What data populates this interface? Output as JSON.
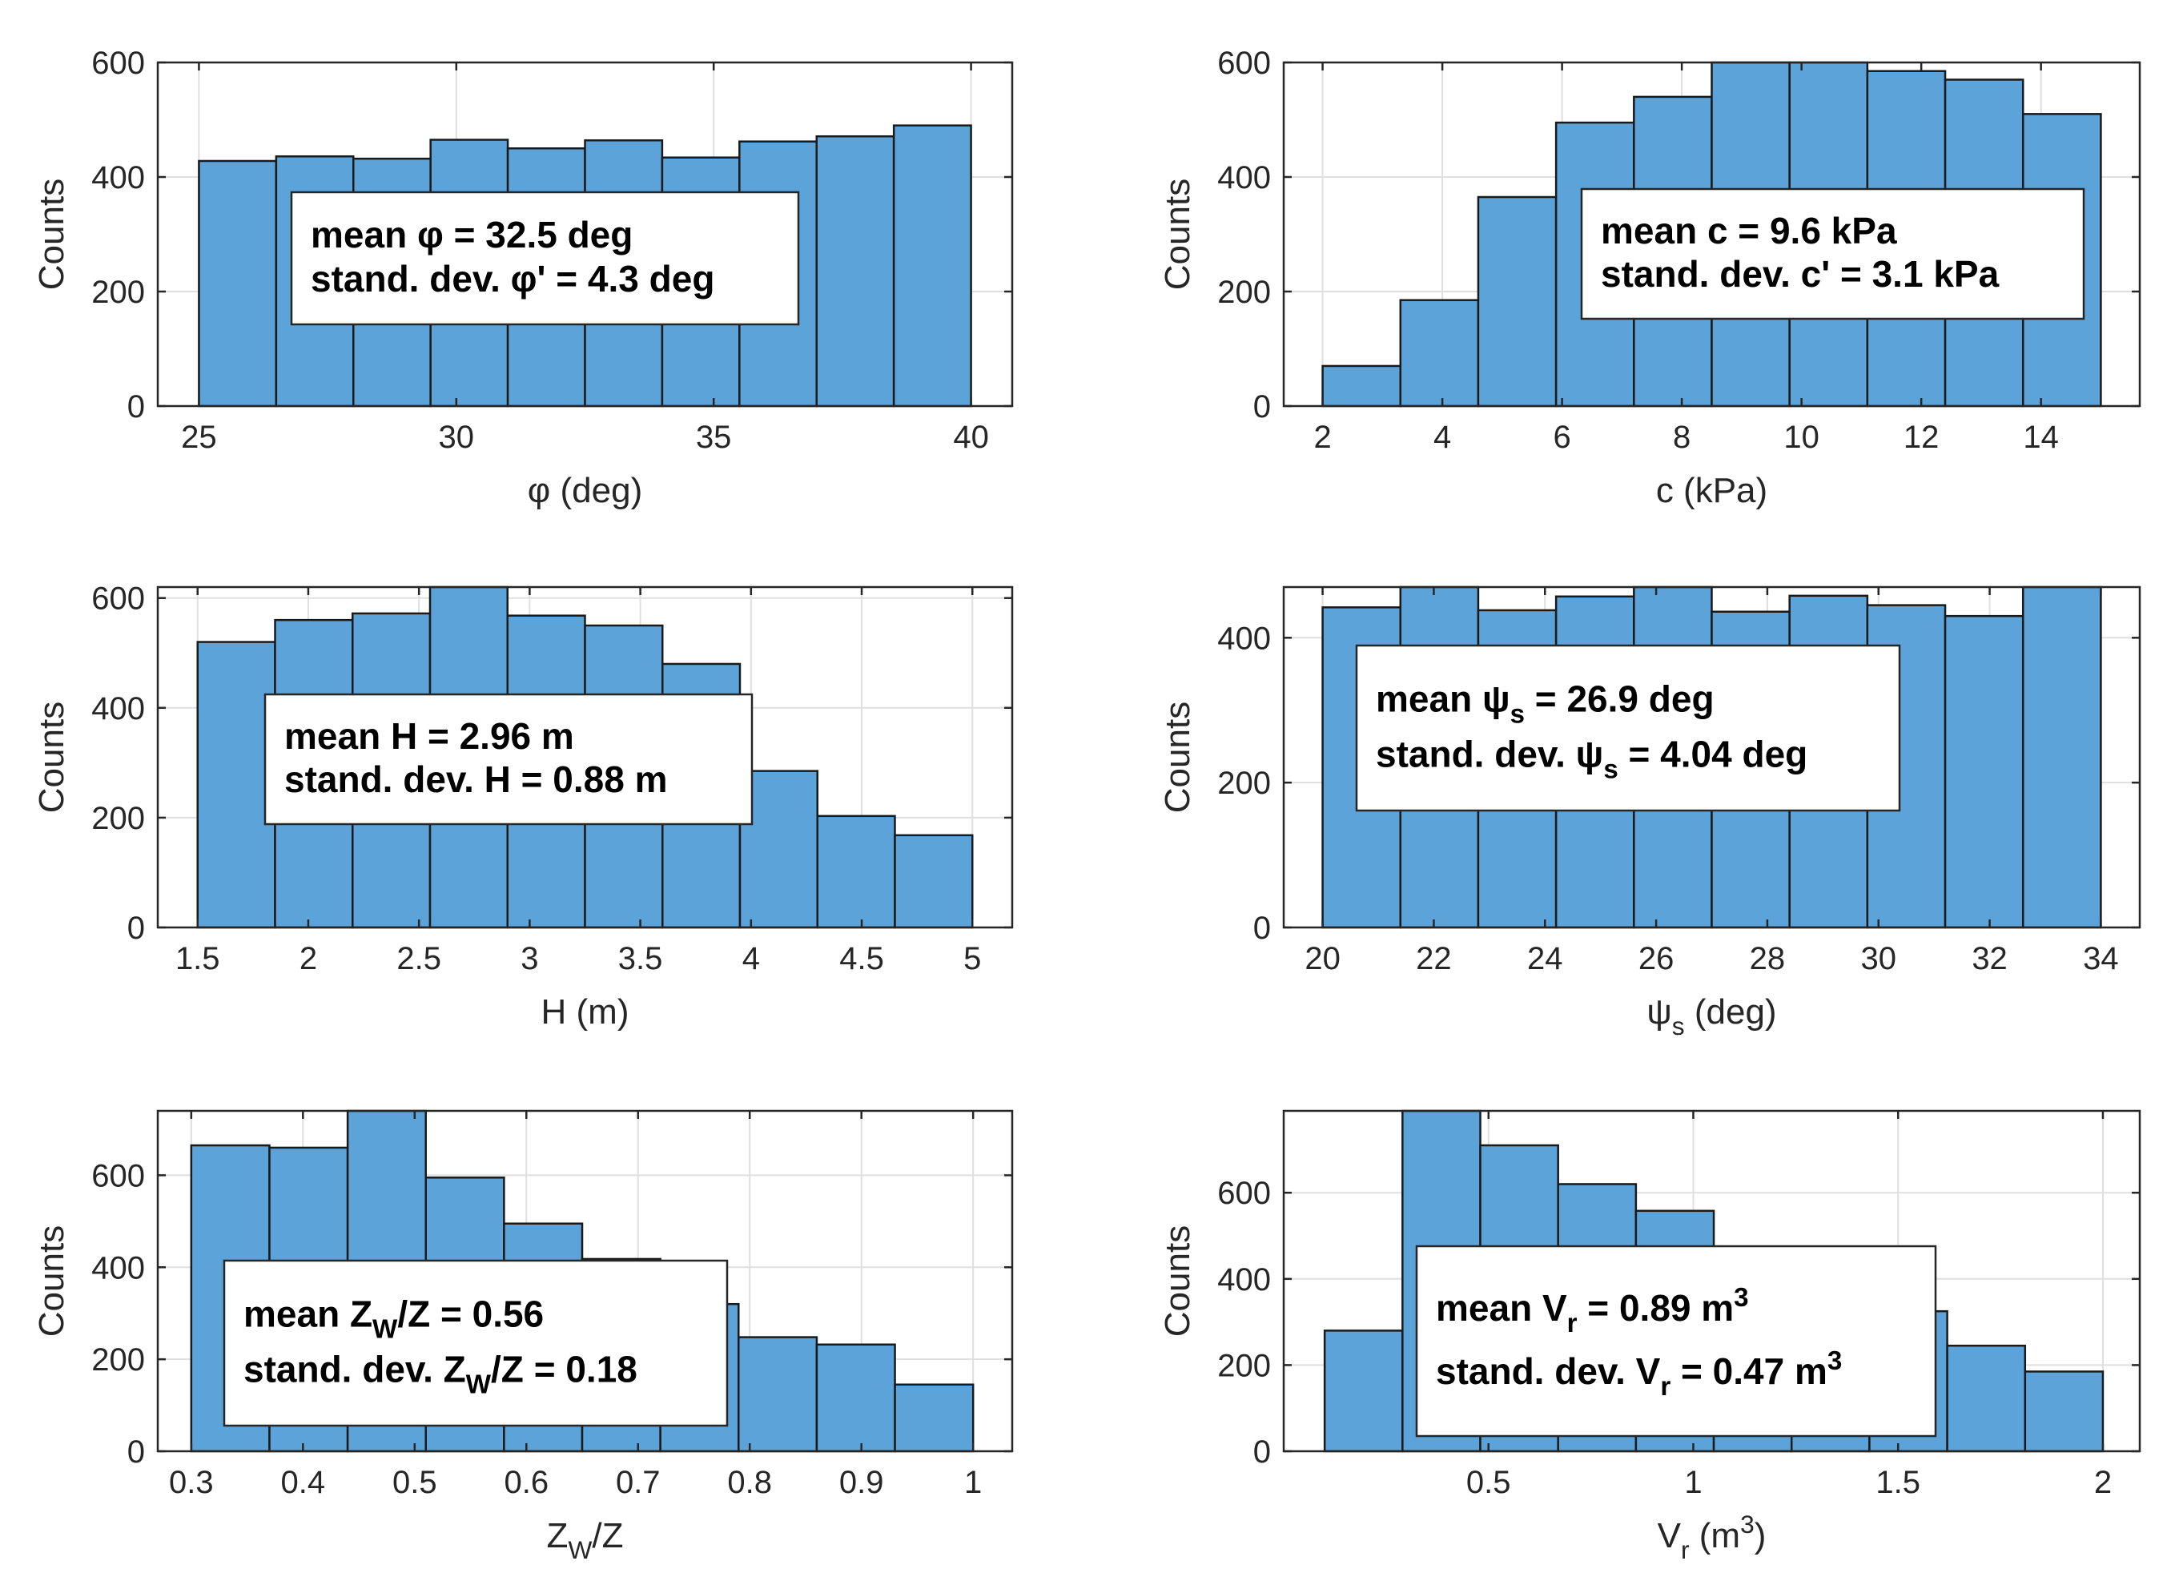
{
  "chart_data": [
    {
      "type": "bar",
      "ylabel": "Counts",
      "xlabel": "φ (deg)",
      "xlim": [
        24.2,
        40.8
      ],
      "ylim": [
        0,
        600
      ],
      "bin_edges": [
        25,
        26.5,
        28,
        29.5,
        31,
        32.5,
        34,
        35.5,
        37,
        38.5,
        40
      ],
      "values": [
        428,
        436,
        432,
        465,
        450,
        464,
        434,
        462,
        471,
        490
      ],
      "xticks": [
        25,
        30,
        35,
        40
      ],
      "xtick_labels": [
        "25",
        "30",
        "35",
        "40"
      ],
      "yticks": [
        0,
        200,
        400,
        600
      ],
      "ytick_labels": [
        "0",
        "200",
        "400",
        "600"
      ],
      "grid": true,
      "bar_color": "#5ba3d9",
      "annotation": {
        "line1": "mean φ = 32.5 deg",
        "line2": "stand. dev. φ' = 4.3 deg"
      }
    },
    {
      "type": "bar",
      "ylabel": "Counts",
      "xlabel": "c (kPa)",
      "xlim": [
        1.35,
        15.65
      ],
      "ylim": [
        0,
        600
      ],
      "bin_edges": [
        2,
        3.3,
        4.6,
        5.9,
        7.2,
        8.5,
        9.8,
        11.1,
        12.4,
        13.7,
        15
      ],
      "values": [
        70,
        185,
        365,
        495,
        540,
        600,
        600,
        585,
        570,
        510
      ],
      "xticks": [
        2,
        4,
        6,
        8,
        10,
        12,
        14
      ],
      "xtick_labels": [
        "2",
        "4",
        "6",
        "8",
        "10",
        "12",
        "14"
      ],
      "yticks": [
        0,
        200,
        400,
        600
      ],
      "ytick_labels": [
        "0",
        "200",
        "400",
        "600"
      ],
      "grid": true,
      "bar_color": "#5ba3d9",
      "annotation": {
        "line1": "mean c = 9.6 kPa",
        "line2": "stand. dev. c' = 3.1 kPa"
      }
    },
    {
      "type": "bar",
      "ylabel": "Counts",
      "xlabel": "H (m)",
      "xlim": [
        1.32,
        5.18
      ],
      "ylim": [
        0,
        620
      ],
      "bin_edges": [
        1.5,
        1.85,
        2.2,
        2.55,
        2.9,
        3.25,
        3.6,
        3.95,
        4.3,
        4.65,
        5
      ],
      "values": [
        520,
        560,
        572,
        620,
        568,
        550,
        480,
        285,
        203,
        168
      ],
      "xticks": [
        1.5,
        2,
        2.5,
        3,
        3.5,
        4,
        4.5,
        5
      ],
      "xtick_labels": [
        "1.5",
        "2",
        "2.5",
        "3",
        "3.5",
        "4",
        "4.5",
        "5"
      ],
      "yticks": [
        0,
        200,
        400,
        600
      ],
      "ytick_labels": [
        "0",
        "200",
        "400",
        "600"
      ],
      "grid": true,
      "bar_color": "#5ba3d9",
      "annotation": {
        "line1": "mean H = 2.96 m",
        "line2": "stand. dev. H = 0.88 m"
      }
    },
    {
      "type": "bar",
      "ylabel": "Counts",
      "xlabel_main": "ψ",
      "xlabel_sub": "s",
      "xlabel_rest": " (deg)",
      "xlim": [
        19.3,
        34.7
      ],
      "ylim": [
        0,
        470
      ],
      "bin_edges": [
        20,
        21.4,
        22.8,
        24.2,
        25.6,
        27,
        28.4,
        29.8,
        31.2,
        32.6,
        34
      ],
      "values": [
        442,
        470,
        438,
        457,
        470,
        436,
        458,
        445,
        430,
        470
      ],
      "xticks": [
        20,
        22,
        24,
        26,
        28,
        30,
        32,
        34
      ],
      "xtick_labels": [
        "20",
        "22",
        "24",
        "26",
        "28",
        "30",
        "32",
        "34"
      ],
      "yticks": [
        0,
        200,
        400
      ],
      "ytick_labels": [
        "0",
        "200",
        "400"
      ],
      "grid": true,
      "bar_color": "#5ba3d9",
      "annotation": {
        "line1_pre": "mean ψ",
        "line1_sub": "s",
        "line1_post": " = 26.9 deg",
        "line2_pre": "stand. dev. ψ",
        "line2_sub": "s",
        "line2_post": " = 4.04 deg"
      }
    },
    {
      "type": "bar",
      "ylabel": "Counts",
      "xlabel_main": "Z",
      "xlabel_sub": "W",
      "xlabel_rest": "/Z",
      "xlim": [
        0.27,
        1.035
      ],
      "ylim": [
        0,
        740
      ],
      "bin_edges": [
        0.3,
        0.37,
        0.44,
        0.51,
        0.58,
        0.65,
        0.72,
        0.79,
        0.86,
        0.93,
        1.0
      ],
      "values": [
        665,
        660,
        740,
        595,
        495,
        418,
        320,
        248,
        232,
        145
      ],
      "xticks": [
        0.3,
        0.4,
        0.5,
        0.6,
        0.7,
        0.8,
        0.9,
        1
      ],
      "xtick_labels": [
        "0.3",
        "0.4",
        "0.5",
        "0.6",
        "0.7",
        "0.8",
        "0.9",
        "1"
      ],
      "yticks": [
        0,
        200,
        400,
        600
      ],
      "ytick_labels": [
        "0",
        "200",
        "400",
        "600"
      ],
      "grid": true,
      "bar_color": "#5ba3d9",
      "annotation": {
        "line1_pre": "mean Z",
        "line1_sub": "W",
        "line1_post": "/Z = 0.56",
        "line2_pre": "stand. dev. Z",
        "line2_sub": "W",
        "line2_post": "/Z = 0.18"
      }
    },
    {
      "type": "bar",
      "ylabel": "Counts",
      "xlabel_main": "V",
      "xlabel_sub": "r",
      "xlabel_rest": " (m",
      "xlabel_sup": "3",
      "xlabel_end": ")",
      "xlim": [
        0,
        2.09
      ],
      "ylim": [
        0,
        790
      ],
      "bin_edges": [
        0.1,
        0.29,
        0.48,
        0.67,
        0.86,
        1.05,
        1.24,
        1.43,
        1.62,
        1.81,
        2.0
      ],
      "values": [
        280,
        790,
        710,
        620,
        558,
        395,
        355,
        325,
        245,
        185
      ],
      "xticks": [
        0.5,
        1,
        1.5,
        2
      ],
      "xtick_labels": [
        "0.5",
        "1",
        "1.5",
        "2"
      ],
      "yticks": [
        0,
        200,
        400,
        600
      ],
      "ytick_labels": [
        "0",
        "200",
        "400",
        "600"
      ],
      "grid": true,
      "bar_color": "#5ba3d9",
      "annotation": {
        "line1_pre": "mean V",
        "line1_sub": "r",
        "line1_post": " = 0.89 m",
        "line1_sup": "3",
        "line2_pre": "stand. dev. V",
        "line2_sub": "r",
        "line2_post": " = 0.47 m",
        "line2_sup": "3"
      }
    }
  ]
}
